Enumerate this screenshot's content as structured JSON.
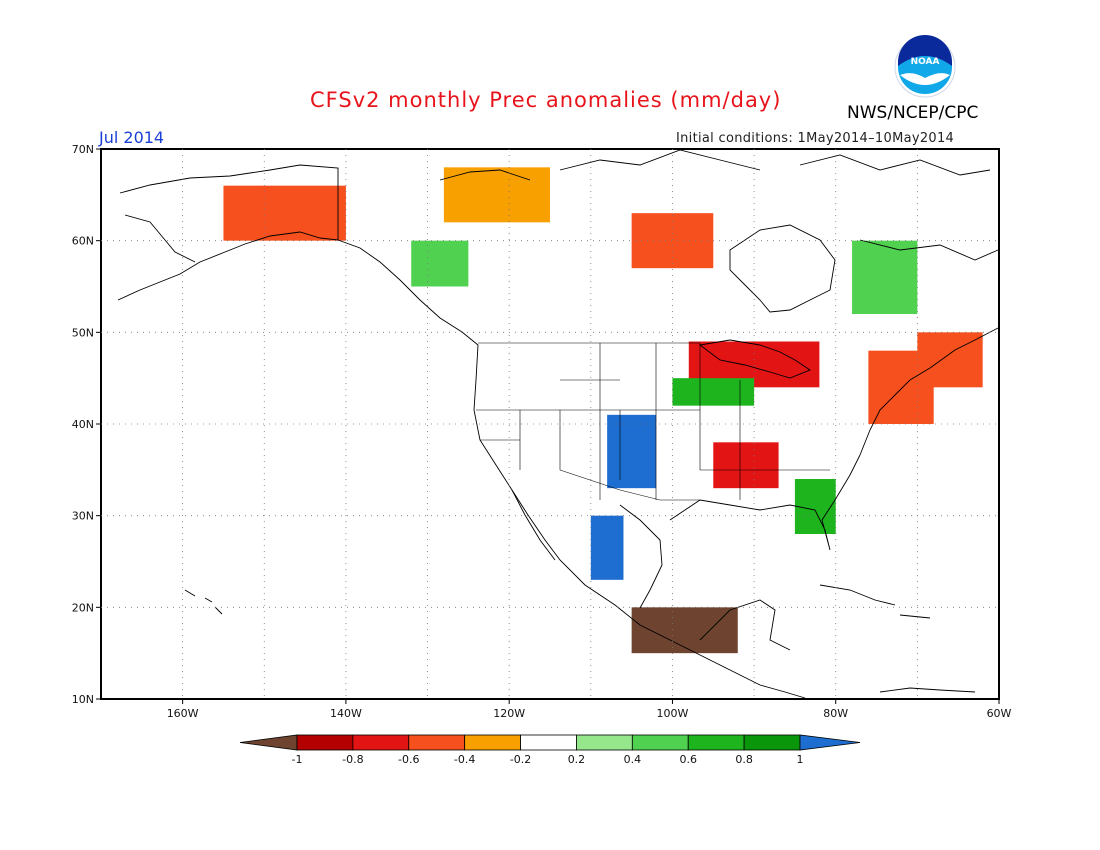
{
  "header": {
    "title": "CFSv2 monthly Prec anomalies (mm/day)",
    "org": "NWS/NCEP/CPC",
    "logo_text": "NOAA",
    "month": "Jul 2014",
    "initial_conditions": "Initial conditions: 1May2014–10May2014"
  },
  "map": {
    "lon_ticks": [
      "160W",
      "140W",
      "120W",
      "100W",
      "80W",
      "60W"
    ],
    "lat_ticks": [
      "70N",
      "60N",
      "50N",
      "40N",
      "30N",
      "20N",
      "10N"
    ],
    "lon_range": [
      -170,
      -60
    ],
    "lat_range": [
      10,
      70
    ]
  },
  "legend": {
    "tick_labels": [
      "-1",
      "-0.8",
      "-0.6",
      "-0.4",
      "-0.2",
      "0.2",
      "0.4",
      "0.6",
      "0.8",
      "1"
    ],
    "colors": {
      "below_-1": "#6e4430",
      "-1_-0.8": "#b40000",
      "-0.8_-0.6": "#e21414",
      "-0.6_-0.4": "#f5501e",
      "-0.4_-0.2": "#f7a000",
      "-0.2_0.2": "#ffffff",
      "0.2_0.4": "#96e68c",
      "0.4_0.6": "#50d250",
      "0.6_0.8": "#1eb41e",
      "0.8_1": "#0a960a",
      "above_1": "#1e6ed2"
    }
  },
  "chart_data": {
    "type": "heatmap",
    "title": "CFSv2 monthly Prec anomalies (mm/day)",
    "period": "Jul 2014",
    "regions": [
      {
        "lon": [
          -155,
          -140
        ],
        "lat": [
          60,
          66
        ],
        "value": -0.5
      },
      {
        "lon": [
          -128,
          -115
        ],
        "lat": [
          62,
          68
        ],
        "value": -0.4
      },
      {
        "lon": [
          -105,
          -95
        ],
        "lat": [
          57,
          63
        ],
        "value": -0.6
      },
      {
        "lon": [
          -132,
          -125
        ],
        "lat": [
          55,
          60
        ],
        "value": 0.5
      },
      {
        "lon": [
          -98,
          -82
        ],
        "lat": [
          44,
          49
        ],
        "value": -0.8
      },
      {
        "lon": [
          -108,
          -102
        ],
        "lat": [
          33,
          41
        ],
        "value": 1.0
      },
      {
        "lon": [
          -100,
          -90
        ],
        "lat": [
          42,
          45
        ],
        "value": 0.6
      },
      {
        "lon": [
          -95,
          -87
        ],
        "lat": [
          33,
          38
        ],
        "value": -0.7
      },
      {
        "lon": [
          -85,
          -80
        ],
        "lat": [
          28,
          34
        ],
        "value": 0.7
      },
      {
        "lon": [
          -110,
          -106
        ],
        "lat": [
          23,
          30
        ],
        "value": 1.0
      },
      {
        "lon": [
          -105,
          -92
        ],
        "lat": [
          15,
          20
        ],
        "value": -1.1
      },
      {
        "lon": [
          -76,
          -68
        ],
        "lat": [
          40,
          48
        ],
        "value": -0.5
      },
      {
        "lon": [
          -70,
          -62
        ],
        "lat": [
          44,
          50
        ],
        "value": -0.6
      },
      {
        "lon": [
          -78,
          -70
        ],
        "lat": [
          52,
          60
        ],
        "value": 0.4
      }
    ]
  }
}
